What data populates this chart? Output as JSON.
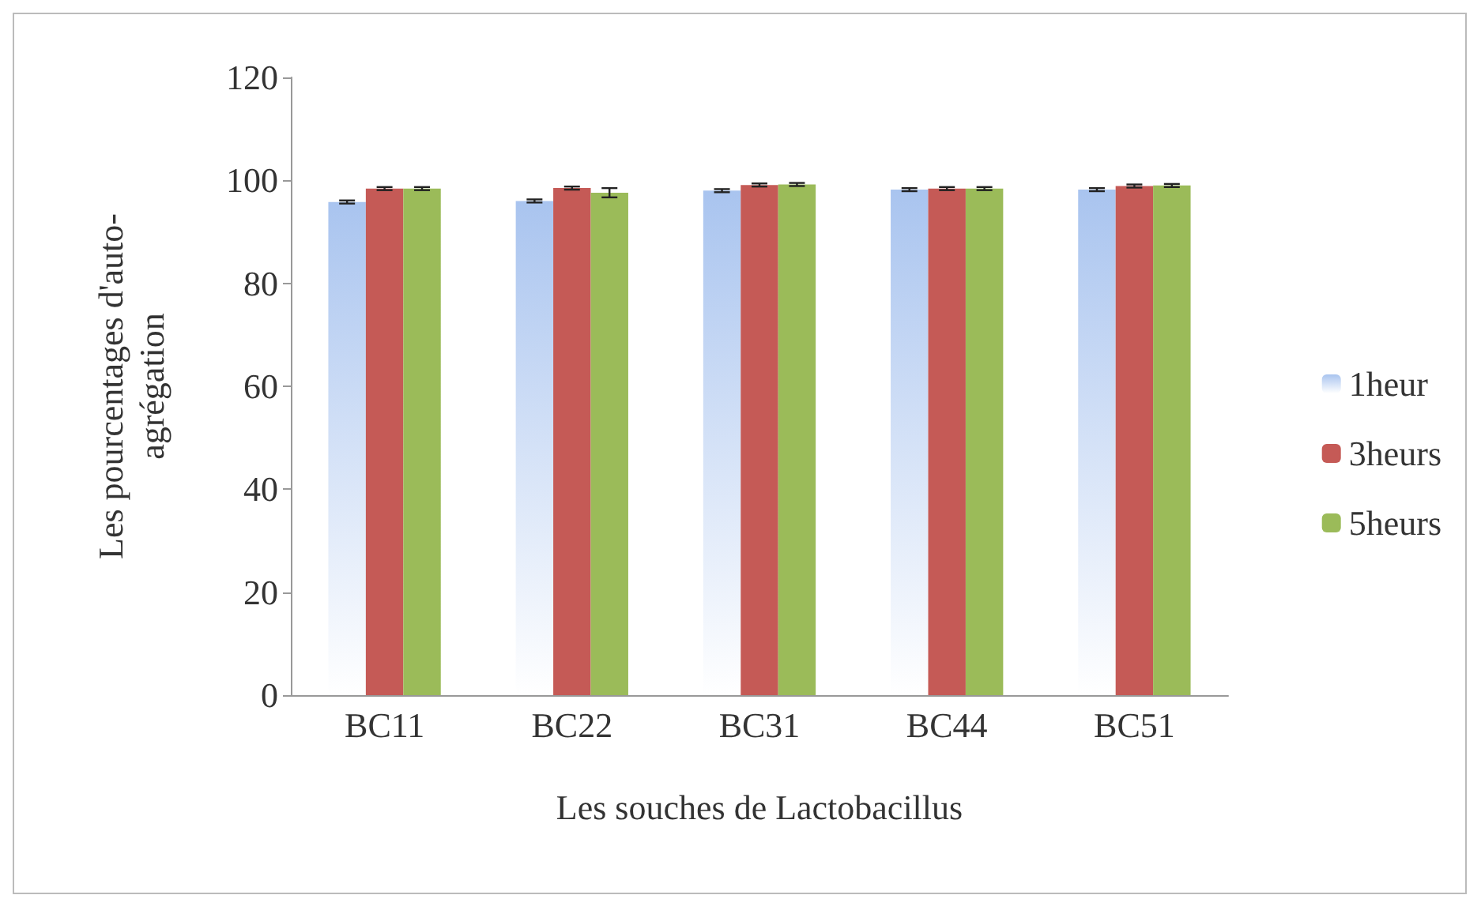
{
  "chart_data": {
    "type": "bar",
    "xlabel": "Les souches de Lactobacillus",
    "ylabel": "Les pourcentages d'auto-agrégation",
    "categories": [
      "BC11",
      "BC22",
      "BC31",
      "BC44",
      "BC51"
    ],
    "series": [
      {
        "name": "1heur",
        "color": "#a9c4ef",
        "values": [
          95.8,
          96,
          98,
          98.2,
          98.2
        ],
        "errors": [
          0.3,
          0.3,
          0.3,
          0.3,
          0.3
        ]
      },
      {
        "name": "3heurs",
        "color": "#c55a56",
        "values": [
          98.4,
          98.5,
          99.1,
          98.4,
          98.9
        ],
        "errors": [
          0.3,
          0.3,
          0.3,
          0.3,
          0.3
        ]
      },
      {
        "name": "5heurs",
        "color": "#9bbb59",
        "values": [
          98.4,
          97.6,
          99.2,
          98.4,
          99
        ],
        "errors": [
          0.3,
          0.9,
          0.3,
          0.3,
          0.3
        ]
      }
    ],
    "ylim": [
      0,
      120
    ],
    "yticks": [
      0,
      20,
      40,
      60,
      80,
      100,
      120
    ],
    "grid": false,
    "legend": "right"
  }
}
